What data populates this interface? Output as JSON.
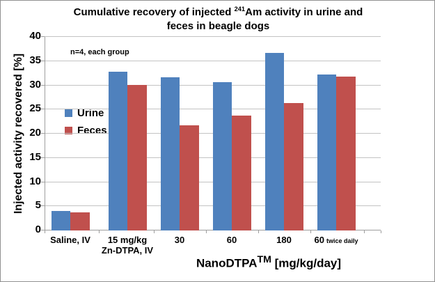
{
  "figure": {
    "title_line1_pre": "Cumulative recovery of injected ",
    "title_isotope": "241",
    "title_line1_post": "Am activity in urine and",
    "title_line2": "feces in beagle dogs",
    "annotation": "n=4, each group",
    "y_axis_title": "Injected activity recovered [%]",
    "x_axis_brand": "NanoDTPA",
    "x_axis_tm": "TM",
    "x_axis_unit": " [mg/kg/day]"
  },
  "legend": {
    "urine_label": "Urine",
    "feces_label": "Feces"
  },
  "colors": {
    "urine": "#4F81BD",
    "feces": "#C0504D",
    "gridline": "#C3C3C3",
    "axis": "#9E9E9E",
    "text": "#000000"
  },
  "chart_data": {
    "type": "bar",
    "title": "Cumulative recovery of injected 241Am activity in urine and feces in beagle dogs",
    "categories": [
      "Saline, IV",
      "15 mg/kg Zn-DTPA, IV",
      "30",
      "60",
      "180",
      "60 twice daily"
    ],
    "category_labels": [
      {
        "line1": "Saline, IV",
        "line2": "",
        "suffix": ""
      },
      {
        "line1": "15 mg/kg",
        "line2": "Zn-DTPA, IV",
        "suffix": ""
      },
      {
        "line1": "30",
        "line2": "",
        "suffix": ""
      },
      {
        "line1": "60",
        "line2": "",
        "suffix": ""
      },
      {
        "line1": "180",
        "line2": "",
        "suffix": ""
      },
      {
        "line1": "60",
        "line2": "",
        "suffix": "twice daily"
      }
    ],
    "series": [
      {
        "name": "Urine",
        "color": "#4F81BD",
        "values": [
          4.0,
          32.8,
          31.6,
          30.6,
          36.7,
          32.2
        ]
      },
      {
        "name": "Feces",
        "color": "#C0504D",
        "values": [
          3.8,
          30.1,
          21.7,
          23.8,
          26.3,
          31.8
        ]
      }
    ],
    "ylabel": "Injected activity recovered [%]",
    "xlabel": "NanoDTPA [mg/kg/day]",
    "ylim": [
      0,
      40
    ],
    "ytick_step": 5,
    "grid": true,
    "legend_position": "inside-left",
    "annotation": "n=4, each group"
  }
}
